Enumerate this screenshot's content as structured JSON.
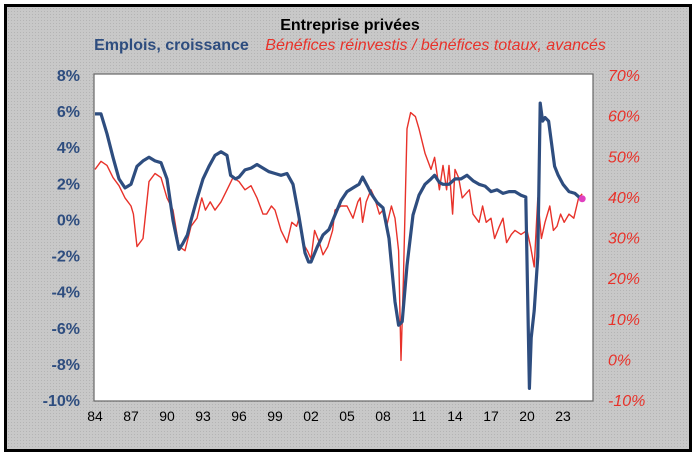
{
  "chart_data": {
    "type": "line",
    "title": "Entreprise privées",
    "legend": [
      {
        "name": "Emplois, croissance",
        "color": "#2e4d7f",
        "axis": "left"
      },
      {
        "name": "Bénéfices réinvestis / bénéfices totaux, avancés",
        "color": "#e8322a",
        "axis": "right"
      }
    ],
    "left_axis": {
      "ylim": [
        -10,
        8
      ],
      "ticks": [
        "8%",
        "6%",
        "4%",
        "2%",
        "0%",
        "-2%",
        "-4%",
        "-6%",
        "-8%",
        "-10%"
      ],
      "tick_values": [
        8,
        6,
        4,
        2,
        0,
        -2,
        -4,
        -6,
        -8,
        -10
      ]
    },
    "right_axis": {
      "ylim": [
        -10,
        70
      ],
      "ticks": [
        "70%",
        "60%",
        "50%",
        "40%",
        "30%",
        "20%",
        "10%",
        "0%",
        "-10%"
      ],
      "tick_values": [
        70,
        60,
        50,
        40,
        30,
        20,
        10,
        0,
        -10
      ]
    },
    "x_axis": {
      "xlim": [
        1984,
        2025.6
      ],
      "ticks": [
        "84",
        "87",
        "90",
        "93",
        "96",
        "99",
        "02",
        "05",
        "08",
        "11",
        "14",
        "17",
        "20",
        "23"
      ],
      "tick_values": [
        1984,
        1987,
        1990,
        1993,
        1996,
        1999,
        2002,
        2005,
        2008,
        2011,
        2014,
        2017,
        2020,
        2023
      ]
    },
    "grid": false,
    "legend_placement": "top",
    "series": [
      {
        "name": "Emplois, croissance",
        "axis": "left",
        "x": [
          1984.0,
          1984.5,
          1985.0,
          1985.5,
          1986.0,
          1986.5,
          1987.0,
          1987.5,
          1988.0,
          1988.5,
          1989.0,
          1989.5,
          1990.0,
          1990.5,
          1991.0,
          1991.3,
          1991.7,
          1992.0,
          1992.5,
          1993.0,
          1993.5,
          1994.0,
          1994.5,
          1995.0,
          1995.3,
          1995.7,
          1996.0,
          1996.5,
          1997.0,
          1997.5,
          1998.0,
          1998.5,
          1999.0,
          1999.5,
          2000.0,
          2000.5,
          2001.0,
          2001.5,
          2001.8,
          2002.0,
          2002.5,
          2003.0,
          2003.5,
          2004.0,
          2004.5,
          2005.0,
          2005.5,
          2006.0,
          2006.3,
          2006.7,
          2007.0,
          2007.5,
          2008.0,
          2008.5,
          2009.0,
          2009.3,
          2009.6,
          2010.0,
          2010.5,
          2011.0,
          2011.5,
          2012.0,
          2012.3,
          2012.7,
          2013.0,
          2013.5,
          2014.0,
          2014.5,
          2015.0,
          2015.5,
          2016.0,
          2016.5,
          2017.0,
          2017.5,
          2018.0,
          2018.5,
          2019.0,
          2019.5,
          2019.9,
          2020.2,
          2020.35,
          2020.6,
          2020.9,
          2021.1,
          2021.3,
          2021.5,
          2021.8,
          2022.0,
          2022.3,
          2022.6,
          2023.0,
          2023.5,
          2024.0,
          2024.5
        ],
        "values": [
          5.9,
          5.9,
          4.8,
          3.5,
          2.3,
          1.8,
          2.0,
          3.0,
          3.3,
          3.5,
          3.3,
          3.2,
          2.3,
          0.0,
          -1.6,
          -1.3,
          -0.8,
          0.0,
          1.2,
          2.3,
          3.0,
          3.6,
          3.8,
          3.6,
          2.5,
          2.3,
          2.4,
          2.8,
          2.9,
          3.1,
          2.9,
          2.7,
          2.6,
          2.5,
          2.6,
          2.0,
          0.2,
          -1.8,
          -2.3,
          -2.3,
          -1.5,
          -0.8,
          -0.5,
          0.3,
          1.1,
          1.6,
          1.8,
          2.0,
          2.4,
          1.9,
          1.5,
          1.0,
          0.7,
          -1.0,
          -4.5,
          -5.8,
          -5.6,
          -2.5,
          0.3,
          1.4,
          2.0,
          2.3,
          2.5,
          2.1,
          2.0,
          2.0,
          2.3,
          2.3,
          2.5,
          2.2,
          2.0,
          1.9,
          1.6,
          1.7,
          1.5,
          1.6,
          1.6,
          1.4,
          1.3,
          -9.3,
          -6.5,
          -5.0,
          -2.0,
          6.5,
          5.5,
          5.7,
          5.5,
          4.5,
          3.0,
          2.5,
          2.0,
          1.6,
          1.5,
          1.2
        ]
      },
      {
        "name": "Bénéfices réinvestis / bénéfices totaux, avancés",
        "axis": "right",
        "x": [
          1984.0,
          1984.5,
          1985.0,
          1985.5,
          1986.0,
          1986.5,
          1987.0,
          1987.2,
          1987.5,
          1988.0,
          1988.5,
          1989.0,
          1989.5,
          1990.0,
          1990.5,
          1991.0,
          1991.5,
          1992.0,
          1992.5,
          1992.9,
          1993.2,
          1993.6,
          1994.0,
          1994.5,
          1995.0,
          1995.5,
          1996.0,
          1996.5,
          1997.0,
          1997.5,
          1998.0,
          1998.3,
          1998.7,
          1999.0,
          1999.5,
          2000.0,
          2000.4,
          2000.8,
          2001.0,
          2001.3,
          2001.7,
          2002.0,
          2002.3,
          2002.7,
          2003.0,
          2003.4,
          2003.8,
          2004.0,
          2004.5,
          2005.0,
          2005.5,
          2005.9,
          2006.1,
          2006.3,
          2006.6,
          2007.0,
          2007.3,
          2007.7,
          2008.0,
          2008.3,
          2008.7,
          2009.0,
          2009.3,
          2009.5,
          2009.7,
          2010.0,
          2010.3,
          2010.7,
          2011.0,
          2011.5,
          2012.0,
          2012.3,
          2012.7,
          2013.0,
          2013.3,
          2013.5,
          2013.8,
          2014.0,
          2014.3,
          2014.6,
          2014.9,
          2015.2,
          2015.5,
          2016.0,
          2016.3,
          2016.6,
          2017.0,
          2017.3,
          2017.7,
          2018.0,
          2018.3,
          2018.7,
          2019.0,
          2019.5,
          2020.0,
          2020.3,
          2020.6,
          2020.9,
          2021.2,
          2021.5,
          2021.9,
          2022.2,
          2022.5,
          2022.8,
          2023.1,
          2023.5,
          2023.9,
          2024.3,
          2024.6
        ],
        "values": [
          47,
          49,
          48,
          45,
          43,
          40,
          38,
          36,
          28,
          30,
          44,
          46,
          45,
          40,
          37,
          28,
          27,
          33,
          35,
          40,
          37,
          39,
          37,
          39,
          42,
          45,
          44,
          42,
          43,
          40,
          36,
          36,
          38,
          37,
          32,
          29,
          34,
          33,
          35,
          29,
          27,
          25,
          32,
          29,
          26,
          28,
          32,
          37,
          38,
          38,
          35,
          39,
          40,
          34,
          39,
          42,
          40,
          36,
          37,
          33,
          38,
          35,
          27,
          0,
          20,
          57,
          61,
          60,
          57,
          51,
          47,
          50,
          42,
          48,
          42,
          48,
          36,
          47,
          45,
          40,
          41,
          42,
          36,
          34,
          38,
          34,
          35,
          30,
          33,
          35,
          29,
          31,
          32,
          31,
          32,
          28,
          23,
          40,
          30,
          34,
          38,
          32,
          33,
          36,
          34,
          36,
          35,
          40,
          41
        ]
      }
    ],
    "highlight_point": {
      "x": 2024.6,
      "left_value": 1.2,
      "color": "#e040c0"
    }
  }
}
